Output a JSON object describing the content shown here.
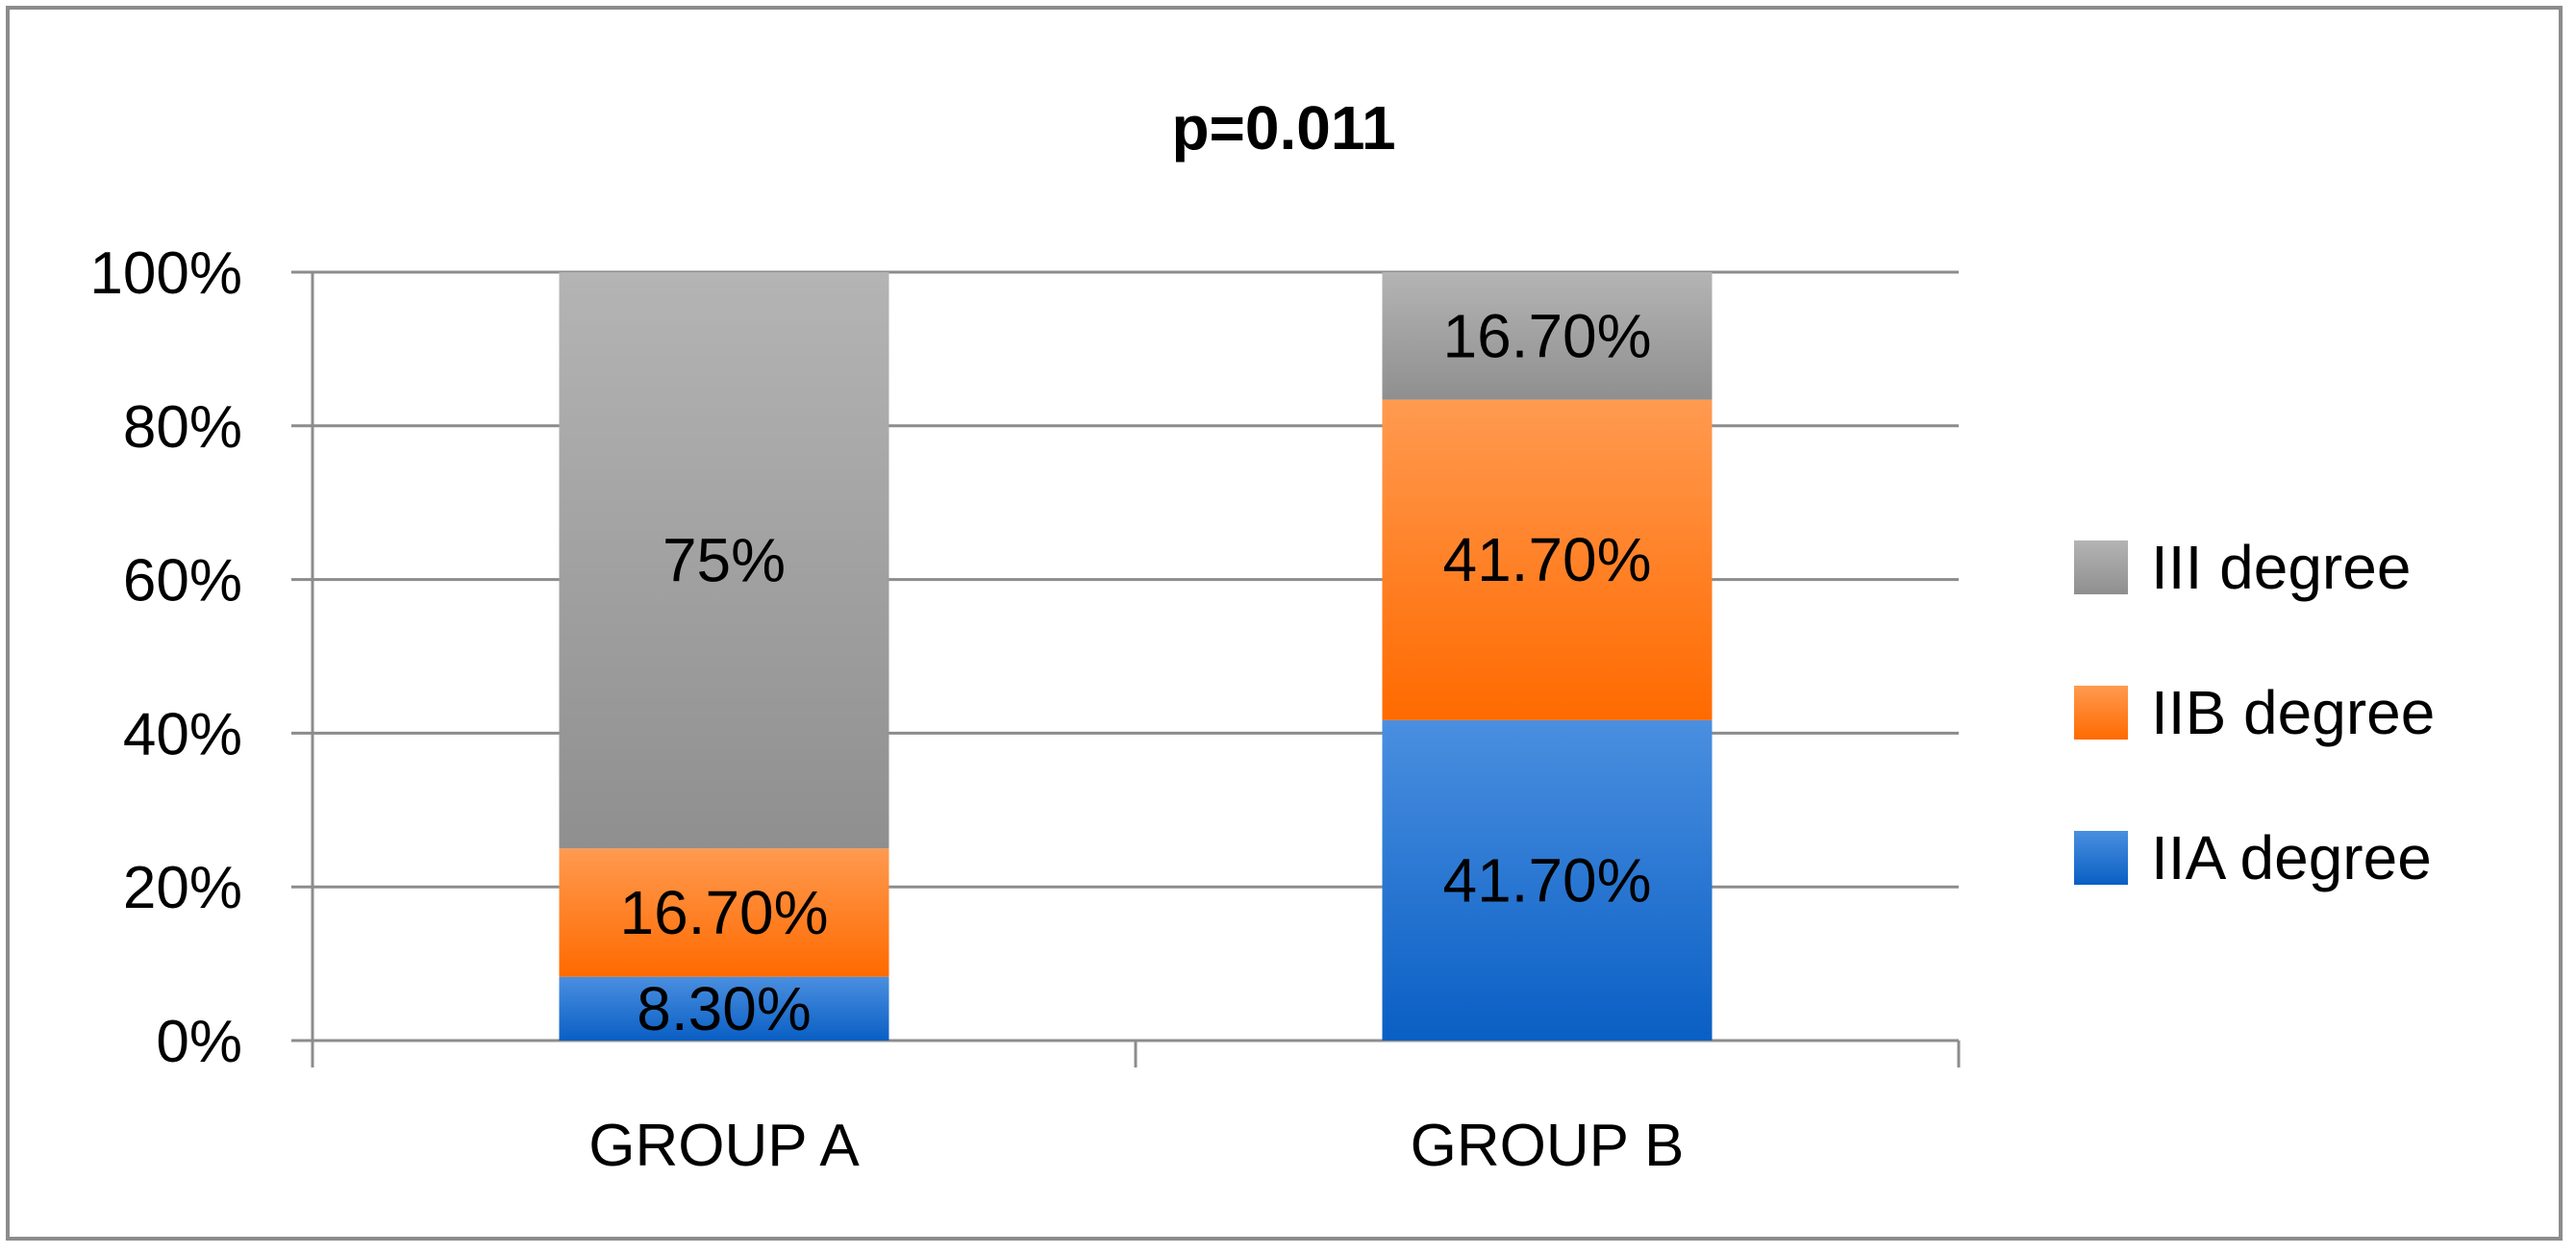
{
  "chart_data": {
    "type": "bar",
    "stacked": true,
    "title": "p=0.011",
    "categories": [
      "GROUP A",
      "GROUP B"
    ],
    "series": [
      {
        "name": "IIA degree",
        "values": [
          8.3,
          41.7
        ],
        "labels": [
          "8.30%",
          "41.70%"
        ],
        "color": "#1f6fd0"
      },
      {
        "name": "IIB degree",
        "values": [
          16.7,
          41.7
        ],
        "labels": [
          "16.70%",
          "41.70%"
        ],
        "color": "#ff7a1a"
      },
      {
        "name": "III degree",
        "values": [
          75,
          16.7
        ],
        "labels": [
          "75%",
          "16.70%"
        ],
        "color": "#a3a3a3"
      }
    ],
    "yticks": [
      "0%",
      "20%",
      "40%",
      "60%",
      "80%",
      "100%"
    ],
    "ylim": [
      0,
      100
    ],
    "grid": true,
    "legend_position": "right",
    "legend_order": [
      "III degree",
      "IIB degree",
      "IIA degree"
    ]
  }
}
